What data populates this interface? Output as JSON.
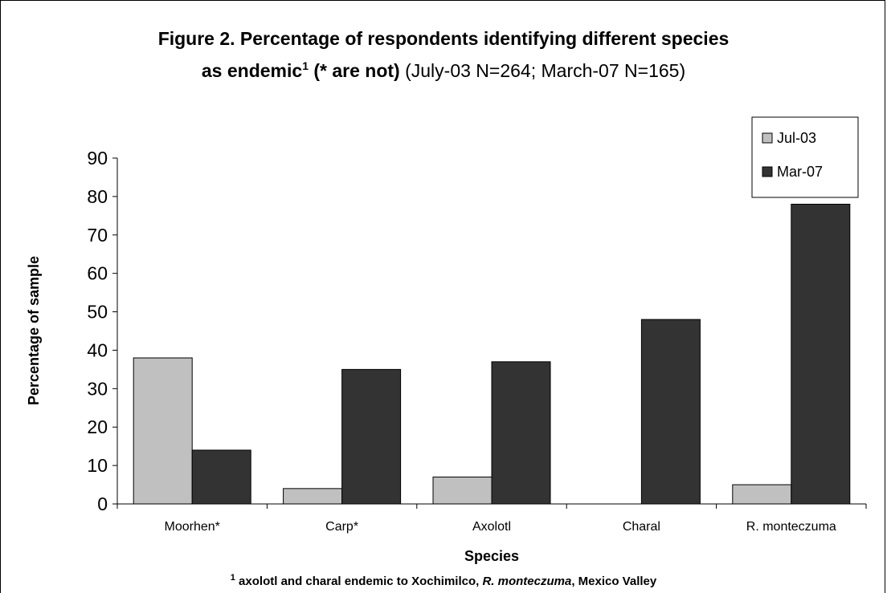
{
  "chart_data": {
    "type": "bar",
    "title_line1": "Figure 2. Percentage of respondents identifying different species",
    "title_line2_bold_a": "as endemic",
    "title_line2_sup": "1",
    "title_line2_bold_b": " (* are not)",
    "title_line2_normal": " (July-03 N=264; March-07 N=165)",
    "xlabel": "Species",
    "ylabel": "Percentage of sample",
    "ylim": [
      0,
      90
    ],
    "yticks": [
      0,
      10,
      20,
      30,
      40,
      50,
      60,
      70,
      80,
      90
    ],
    "categories": [
      "Moorhen*",
      "Carp*",
      "Axolotl",
      "Charal",
      "R. monteczuma"
    ],
    "series": [
      {
        "name": "Jul-03",
        "color": "#c0c0c0",
        "values": [
          38,
          4,
          7,
          0,
          5
        ]
      },
      {
        "name": "Mar-07",
        "color": "#333333",
        "values": [
          14,
          35,
          37,
          48,
          78
        ]
      }
    ],
    "legend_position": "top-right",
    "grid": false,
    "footnote": {
      "sup": "1",
      "text_a": " axolotl and charal endemic to Xochimilco, ",
      "text_italic": "R. monteczuma",
      "text_b": ", Mexico Valley"
    }
  }
}
